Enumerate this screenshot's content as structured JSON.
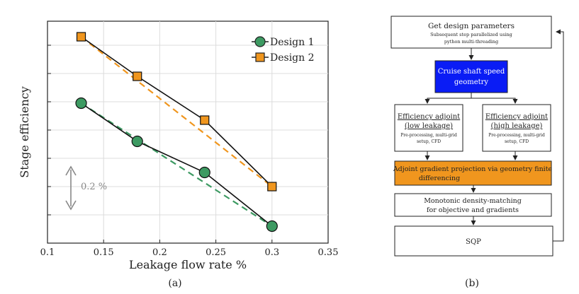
{
  "chart_data": {
    "type": "line",
    "xlabel": "Leakage flow rate %",
    "ylabel": "Stage efficiency",
    "xlim": [
      0.1,
      0.35
    ],
    "x_ticks": [
      "0.1",
      "0.15",
      "0.2",
      "0.25",
      "0.3",
      "0.35"
    ],
    "grid": true,
    "legend_position": "top-right",
    "x": [
      0.13,
      0.18,
      0.24,
      0.3
    ],
    "series": [
      {
        "name": "Design 1",
        "values": [
          0.89,
          0.62,
          0.4,
          0.02
        ],
        "color": "#3d9a62",
        "marker": "circle"
      },
      {
        "name": "Design 2",
        "values": [
          1.36,
          1.08,
          0.77,
          0.3
        ],
        "color": "#f0961e",
        "marker": "square"
      }
    ],
    "scale_annotation": "0.2 %",
    "panel_label": "(a)"
  },
  "flowchart": {
    "panel_label": "(b)",
    "nodes": {
      "n1": {
        "title": "Get design parameters",
        "sub1": "Subsequent step parallelized using",
        "sub2": "python multi-threading"
      },
      "n2": {
        "line1": "Cruise shaft speed",
        "line2": "geometry",
        "color": "#0a1cf5"
      },
      "n3": {
        "line1": "Efficiency adjoint",
        "line2": "(low leakage)",
        "sub1": "Pre-processing, multi-grid",
        "sub2": "setup, CFD"
      },
      "n4": {
        "line1": "Efficiency adjoint",
        "line2": "(high leakage)",
        "sub1": "Pre-processing, multi-grid",
        "sub2": "setup, CFD"
      },
      "n5": {
        "line1": "Adjoint gradient projection via geometry finite",
        "line2": "differencing",
        "color": "#f0961e"
      },
      "n6": {
        "line1": "Monotonic density-matching",
        "line2": "for objective and gradients"
      },
      "n7": {
        "line1": "SQP"
      }
    }
  }
}
